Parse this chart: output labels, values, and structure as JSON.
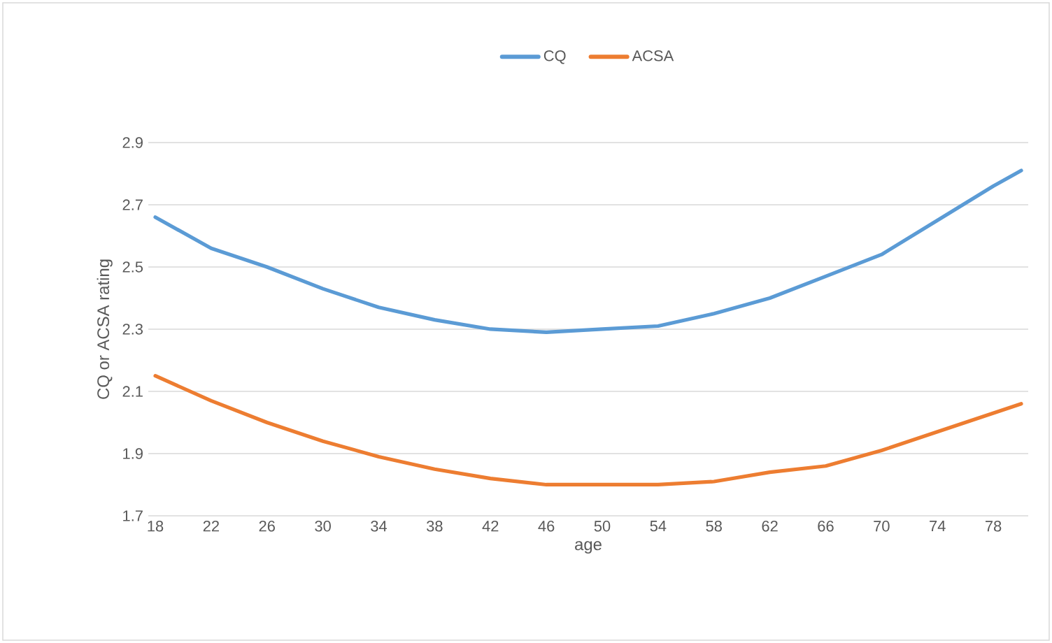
{
  "chart_data": {
    "type": "line",
    "xlabel": "age",
    "ylabel": "CQ or ACSA rating",
    "x": [
      18,
      22,
      26,
      30,
      34,
      38,
      42,
      46,
      50,
      54,
      58,
      62,
      66,
      70,
      74,
      78,
      80
    ],
    "series": [
      {
        "name": "CQ",
        "color": "#5b9bd5",
        "values": [
          2.66,
          2.56,
          2.5,
          2.43,
          2.37,
          2.33,
          2.3,
          2.29,
          2.3,
          2.31,
          2.35,
          2.4,
          2.47,
          2.54,
          2.65,
          2.76,
          2.81
        ]
      },
      {
        "name": "ACSA",
        "color": "#ed7d31",
        "values": [
          2.15,
          2.07,
          2.0,
          1.94,
          1.89,
          1.85,
          1.82,
          1.8,
          1.8,
          1.8,
          1.81,
          1.84,
          1.86,
          1.91,
          1.97,
          2.03,
          2.06
        ]
      }
    ],
    "xlim": [
      17.5,
      80.5
    ],
    "ylim": [
      1.7,
      2.9
    ],
    "xticks": [
      18,
      22,
      26,
      30,
      34,
      38,
      42,
      46,
      50,
      54,
      58,
      62,
      66,
      70,
      74,
      78
    ],
    "yticks": [
      1.7,
      1.9,
      2.1,
      2.3,
      2.5,
      2.7,
      2.9
    ],
    "grid": "y",
    "legend": "top",
    "marker": "none",
    "line_style": "solid"
  }
}
